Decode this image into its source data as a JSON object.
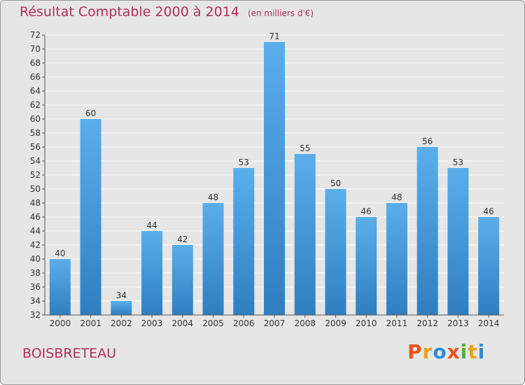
{
  "header": {
    "title": "Résultat Comptable 2000 à 2014",
    "unit": "(en milliers d'€)"
  },
  "commune": "BOISBRETEAU",
  "logo": {
    "letters": [
      "P",
      "r",
      "o",
      "x",
      "i",
      "t",
      "i"
    ],
    "colors": [
      "#e8541b",
      "#e8a21b",
      "#2f8dd6",
      "#e8541b",
      "#54b235",
      "#e8a21b",
      "#2f8dd6"
    ]
  },
  "colors": {
    "title": "#b23057",
    "bar_light": "#5aaeea",
    "bar_dark": "#2f7fc0",
    "background": "#e6e6e6"
  },
  "chart_data": {
    "type": "bar",
    "title": "Résultat Comptable 2000 à 2014",
    "xlabel": "",
    "ylabel": "(en milliers d'€)",
    "categories": [
      "2000",
      "2001",
      "2002",
      "2003",
      "2004",
      "2005",
      "2006",
      "2007",
      "2008",
      "2009",
      "2010",
      "2011",
      "2012",
      "2013",
      "2014"
    ],
    "values": [
      40,
      60,
      34,
      44,
      42,
      48,
      53,
      71,
      55,
      50,
      46,
      48,
      56,
      53,
      46
    ],
    "ylim": [
      32,
      72
    ],
    "yticks": [
      32,
      34,
      36,
      38,
      40,
      42,
      44,
      46,
      48,
      50,
      52,
      54,
      56,
      58,
      60,
      62,
      64,
      66,
      68,
      70,
      72
    ],
    "grid": true
  }
}
